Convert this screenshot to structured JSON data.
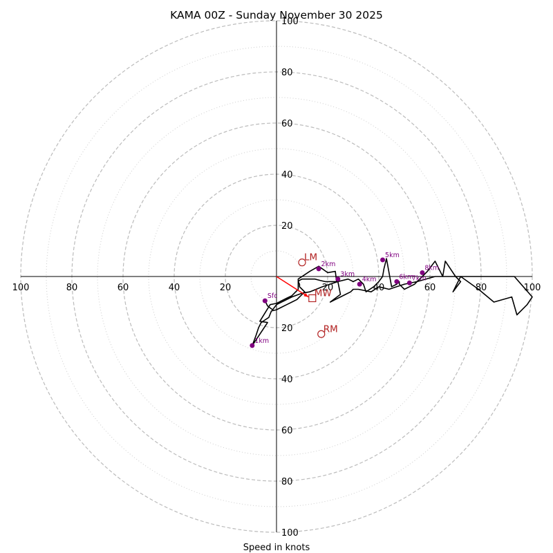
{
  "chart_data": {
    "type": "hodograph",
    "title": "KAMA 00Z - Sunday November 30 2025",
    "xlabel": "Speed in knots",
    "axis_range_knots": [
      -100,
      100
    ],
    "ring_tick_labels": [
      "20",
      "40",
      "60",
      "80",
      "100"
    ],
    "dashed_rings_knots": [
      20,
      40,
      60,
      80,
      100
    ],
    "dotted_rings_knots": [
      10,
      30,
      50,
      70,
      90
    ],
    "colors": {
      "profile": "#000000",
      "height_markers": "#800080",
      "motion": "#b22222",
      "mean_wind_vector": "#ff0000",
      "grid": "#bbbbbb"
    },
    "wind_profile_uv": [
      [
        -4.5,
        -9.5
      ],
      [
        -3.5,
        -11.5
      ],
      [
        -1.5,
        -13
      ],
      [
        0,
        -11
      ],
      [
        6,
        -8
      ],
      [
        10,
        -6.5
      ],
      [
        13,
        -6
      ],
      [
        18,
        -4
      ],
      [
        24,
        -2
      ],
      [
        28,
        -1
      ],
      [
        30,
        -2
      ],
      [
        32,
        -1
      ],
      [
        34,
        -3
      ],
      [
        35,
        -6
      ],
      [
        38,
        -4
      ],
      [
        40,
        -2
      ],
      [
        41.5,
        0
      ],
      [
        42,
        3
      ],
      [
        43,
        7
      ],
      [
        45,
        -4
      ],
      [
        47,
        -3
      ],
      [
        48,
        -2
      ],
      [
        48,
        -3
      ],
      [
        49,
        -4
      ],
      [
        50,
        -5
      ],
      [
        52,
        -4
      ],
      [
        54,
        -3
      ],
      [
        56,
        -1
      ],
      [
        57,
        0
      ],
      [
        59,
        2
      ],
      [
        62,
        6
      ],
      [
        65,
        0
      ],
      [
        66,
        6
      ],
      [
        70,
        0
      ],
      [
        72,
        -2
      ],
      [
        69,
        -6
      ],
      [
        72,
        0
      ],
      [
        79,
        -5
      ],
      [
        85,
        -10
      ],
      [
        92,
        -8
      ],
      [
        94,
        -15
      ],
      [
        98,
        -11
      ],
      [
        100,
        -8
      ],
      [
        93,
        0
      ],
      [
        82,
        0
      ],
      [
        72,
        0
      ],
      [
        62,
        0
      ],
      [
        55,
        -2
      ],
      [
        50,
        -3
      ],
      [
        47,
        -4
      ],
      [
        44,
        -5
      ],
      [
        40,
        -4
      ],
      [
        37,
        -6
      ],
      [
        32,
        -5
      ],
      [
        30,
        -5
      ],
      [
        29,
        -6
      ],
      [
        27,
        -7
      ],
      [
        25,
        -8
      ],
      [
        23,
        -9
      ],
      [
        21,
        -10
      ],
      [
        25,
        -7
      ],
      [
        24,
        -2
      ],
      [
        23,
        -2
      ],
      [
        21,
        -2
      ],
      [
        19,
        -2
      ],
      [
        17,
        -1.5
      ],
      [
        15,
        -1
      ],
      [
        13,
        -1
      ],
      [
        10,
        -1
      ],
      [
        9,
        -1.5
      ],
      [
        8.5,
        -2
      ],
      [
        9,
        -3
      ],
      [
        9,
        -4
      ],
      [
        10,
        -5
      ],
      [
        11,
        -6
      ],
      [
        10,
        -7
      ],
      [
        9,
        -8
      ],
      [
        8,
        -9
      ],
      [
        6,
        -10
      ],
      [
        4,
        -11
      ],
      [
        2,
        -12
      ],
      [
        0,
        -13
      ],
      [
        -2,
        -13.5
      ],
      [
        -3,
        -16
      ],
      [
        -6,
        -18
      ],
      [
        -7,
        -20
      ],
      [
        -8,
        -23
      ],
      [
        -9.5,
        -27
      ],
      [
        -3.5,
        -18
      ],
      [
        -6.5,
        -17.5
      ],
      [
        -2.5,
        -11
      ],
      [
        0,
        -10.5
      ],
      [
        2,
        -9.5
      ],
      [
        4,
        -8.5
      ],
      [
        6,
        -7.5
      ],
      [
        8.5,
        -5
      ],
      [
        8.5,
        -1
      ],
      [
        13,
        2
      ],
      [
        16.5,
        4
      ],
      [
        20,
        1.5
      ],
      [
        23,
        2
      ],
      [
        23.5,
        -2
      ]
    ],
    "height_markers": [
      {
        "label": "Sfc",
        "u": -4.5,
        "v": -9.5
      },
      {
        "label": "1km",
        "u": -9.5,
        "v": -27
      },
      {
        "label": "2km",
        "u": 16.5,
        "v": 3
      },
      {
        "label": "3km",
        "u": 24,
        "v": -1
      },
      {
        "label": "4km",
        "u": 32.5,
        "v": -3
      },
      {
        "label": "5km",
        "u": 41.5,
        "v": 6.5
      },
      {
        "label": "6km",
        "u": 47,
        "v": -2
      },
      {
        "label": "7km",
        "u": 52,
        "v": -2.5
      },
      {
        "label": "8km",
        "u": 57,
        "v": 1.5
      }
    ],
    "storm_motion_markers": [
      {
        "label": "LM",
        "u": 10,
        "v": 5.5,
        "shape": "circle"
      },
      {
        "label": "RM",
        "u": 17.5,
        "v": -22.5,
        "shape": "circle"
      },
      {
        "label": "MW",
        "u": 14,
        "v": -8.5,
        "shape": "square"
      }
    ],
    "mean_wind_vector": {
      "u": 12.5,
      "v": -8
    }
  }
}
